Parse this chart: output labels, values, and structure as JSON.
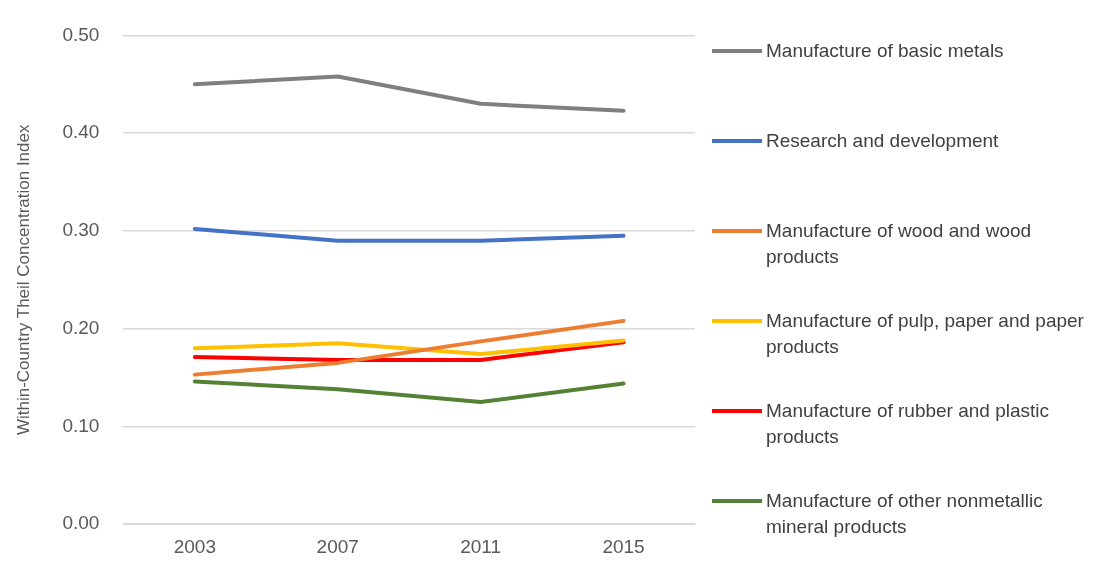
{
  "chart_data": {
    "type": "line",
    "ylabel": "Within-Country Theil Concentration Index",
    "categories": [
      "2003",
      "2007",
      "2011",
      "2015"
    ],
    "series": [
      {
        "name": "Manufacture of basic metals",
        "color": "#7f7f7f",
        "values": [
          0.45,
          0.458,
          0.43,
          0.423
        ]
      },
      {
        "name": "Research and development",
        "color": "#4472c4",
        "values": [
          0.302,
          0.29,
          0.29,
          0.295
        ]
      },
      {
        "name": "Manufacture of wood and wood products",
        "color": "#ed7d31",
        "values": [
          0.153,
          0.165,
          0.187,
          0.208
        ]
      },
      {
        "name": "Manufacture of pulp, paper and paper products",
        "color": "#ffc000",
        "values": [
          0.18,
          0.185,
          0.174,
          0.188
        ]
      },
      {
        "name": "Manufacture of rubber and plastic products",
        "color": "#ff0000",
        "values": [
          0.171,
          0.168,
          0.168,
          0.186
        ]
      },
      {
        "name": "Manufacture of other nonmetallic mineral products",
        "color": "#548235",
        "values": [
          0.146,
          0.138,
          0.125,
          0.144
        ]
      }
    ],
    "ylim": [
      0,
      0.5
    ],
    "yticks": [
      {
        "value": 0,
        "label": "0.00"
      },
      {
        "value": 0.1,
        "label": "0.10"
      },
      {
        "value": 0.2,
        "label": "0.20"
      },
      {
        "value": 0.3,
        "label": "0.30"
      },
      {
        "value": 0.4,
        "label": "0.40"
      },
      {
        "value": 0.5,
        "label": "0.50"
      }
    ],
    "grid": "y",
    "legend": "right",
    "marker": "none",
    "line_style": "solid"
  }
}
